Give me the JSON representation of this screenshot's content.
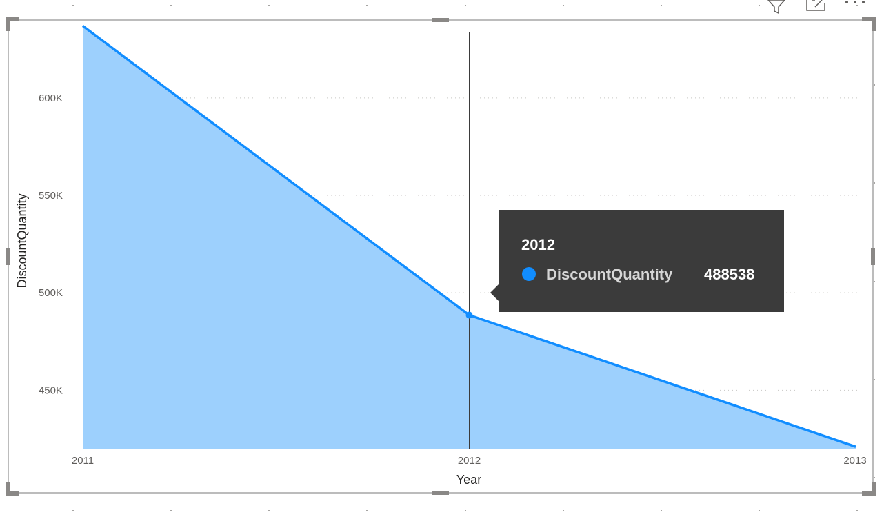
{
  "visual": {
    "header_icons": [
      "filter-icon",
      "focus-mode-icon",
      "more-options-icon"
    ]
  },
  "chart_data": {
    "type": "area",
    "x": [
      "2011",
      "2012",
      "2013"
    ],
    "series": [
      {
        "name": "DiscountQuantity",
        "values": [
          637000,
          488538,
          421000
        ]
      }
    ],
    "xlabel": "Year",
    "ylabel": "DiscountQuantity",
    "yticks": [
      450000,
      500000,
      550000,
      600000
    ],
    "ytick_labels": [
      "450K",
      "500K",
      "550K",
      "600K"
    ],
    "ylim": [
      420000,
      640000
    ],
    "grid": "horizontal-dotted",
    "colors": {
      "line": "#118dff",
      "fill": "#9dd0fd"
    },
    "tooltip": {
      "title": "2012",
      "series_name": "DiscountQuantity",
      "value": "488538"
    }
  }
}
